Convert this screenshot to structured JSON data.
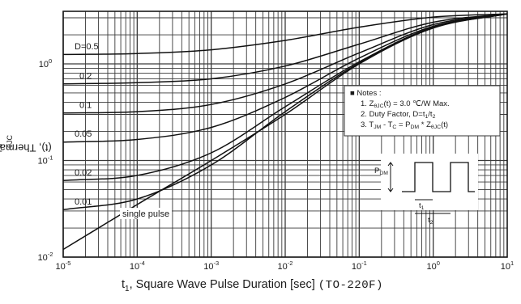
{
  "chart_data": {
    "type": "line",
    "xlabel": "t",
    "xlabel_sub": "1",
    "xlabel_rest": ", Square Wave Pulse Duration [sec]",
    "package_note": "(TO-220F)",
    "ylabel": "Z",
    "ylabel_sub": "θJC",
    "ylabel_rest": "(t), Thermal Response",
    "x_scale": "log",
    "y_scale": "log",
    "xlim": [
      1e-05,
      10
    ],
    "ylim": [
      0.01,
      3.5
    ],
    "x_ticks": [
      {
        "value": 1e-05,
        "base": "10",
        "exp": "-5"
      },
      {
        "value": 0.0001,
        "base": "10",
        "exp": "-4"
      },
      {
        "value": 0.001,
        "base": "10",
        "exp": "-3"
      },
      {
        "value": 0.01,
        "base": "10",
        "exp": "-2"
      },
      {
        "value": 0.1,
        "base": "10",
        "exp": "-1"
      },
      {
        "value": 1,
        "base": "10",
        "exp": "0"
      },
      {
        "value": 10,
        "base": "10",
        "exp": "1"
      }
    ],
    "y_ticks": [
      {
        "value": 1,
        "base": "10",
        "exp": "0"
      },
      {
        "value": 0.1,
        "base": "10",
        "exp": "-1"
      },
      {
        "value": 0.01,
        "base": "10",
        "exp": "-2"
      }
    ],
    "grid": true,
    "series": [
      {
        "name": "D=0.5",
        "curve_label": "D=0.5",
        "x": [
          1e-05,
          0.0001,
          0.001,
          0.01,
          0.1,
          1,
          10
        ],
        "y": [
          1.25,
          1.28,
          1.4,
          1.75,
          2.4,
          3.05,
          3.3
        ]
      },
      {
        "name": "0.2",
        "curve_label": "0.2",
        "x": [
          1e-05,
          0.0001,
          0.001,
          0.01,
          0.1,
          1,
          10
        ],
        "y": [
          0.62,
          0.64,
          0.7,
          0.95,
          1.6,
          2.7,
          3.3
        ]
      },
      {
        "name": "0.1",
        "curve_label": "0.1",
        "x": [
          1e-05,
          0.0001,
          0.001,
          0.01,
          0.1,
          1,
          10
        ],
        "y": [
          0.31,
          0.32,
          0.38,
          0.62,
          1.3,
          2.55,
          3.3
        ]
      },
      {
        "name": "0.05",
        "curve_label": "0.05",
        "x": [
          1e-05,
          0.0001,
          0.001,
          0.01,
          0.1,
          1,
          10
        ],
        "y": [
          0.155,
          0.165,
          0.22,
          0.45,
          1.15,
          2.45,
          3.3
        ]
      },
      {
        "name": "0.02",
        "curve_label": "0.02",
        "x": [
          1e-05,
          0.0001,
          0.001,
          0.01,
          0.1,
          1,
          10
        ],
        "y": [
          0.062,
          0.07,
          0.12,
          0.36,
          1.05,
          2.4,
          3.3
        ]
      },
      {
        "name": "0.01",
        "curve_label": "0.01",
        "x": [
          1e-05,
          0.0001,
          0.001,
          0.01,
          0.1,
          1,
          10
        ],
        "y": [
          0.031,
          0.04,
          0.09,
          0.32,
          1.02,
          2.38,
          3.3
        ]
      },
      {
        "name": "single pulse",
        "curve_label": "single pulse",
        "x": [
          1e-05,
          0.0001,
          0.001,
          0.01,
          0.1,
          1,
          10
        ],
        "y": [
          0.012,
          0.035,
          0.1,
          0.3,
          1.0,
          2.35,
          3.3
        ]
      }
    ],
    "notes": {
      "title": "Notes :",
      "lines": [
        {
          "num": "1. ",
          "a": "Z",
          "a_sub": "θJC",
          "b": "(t) = 3.0 ℃/W Max."
        },
        {
          "num": "2. ",
          "a": "Duty Factor, D=t",
          "a_sub": "1",
          "b": "/t",
          "b_sub": "2"
        },
        {
          "num": "3. ",
          "a": "T",
          "a_sub": "JM",
          "b": " - T",
          "b_sub": "C",
          "c": " = P",
          "c_sub": "DM",
          "d": " * Z",
          "d_sub": "θJC",
          "e": "(t)"
        }
      ]
    },
    "waveform": {
      "pdm_label": "P",
      "pdm_sub": "DM",
      "t1_label": "t",
      "t1_sub": "1",
      "t2_label": "t",
      "t2_sub": "2"
    }
  }
}
